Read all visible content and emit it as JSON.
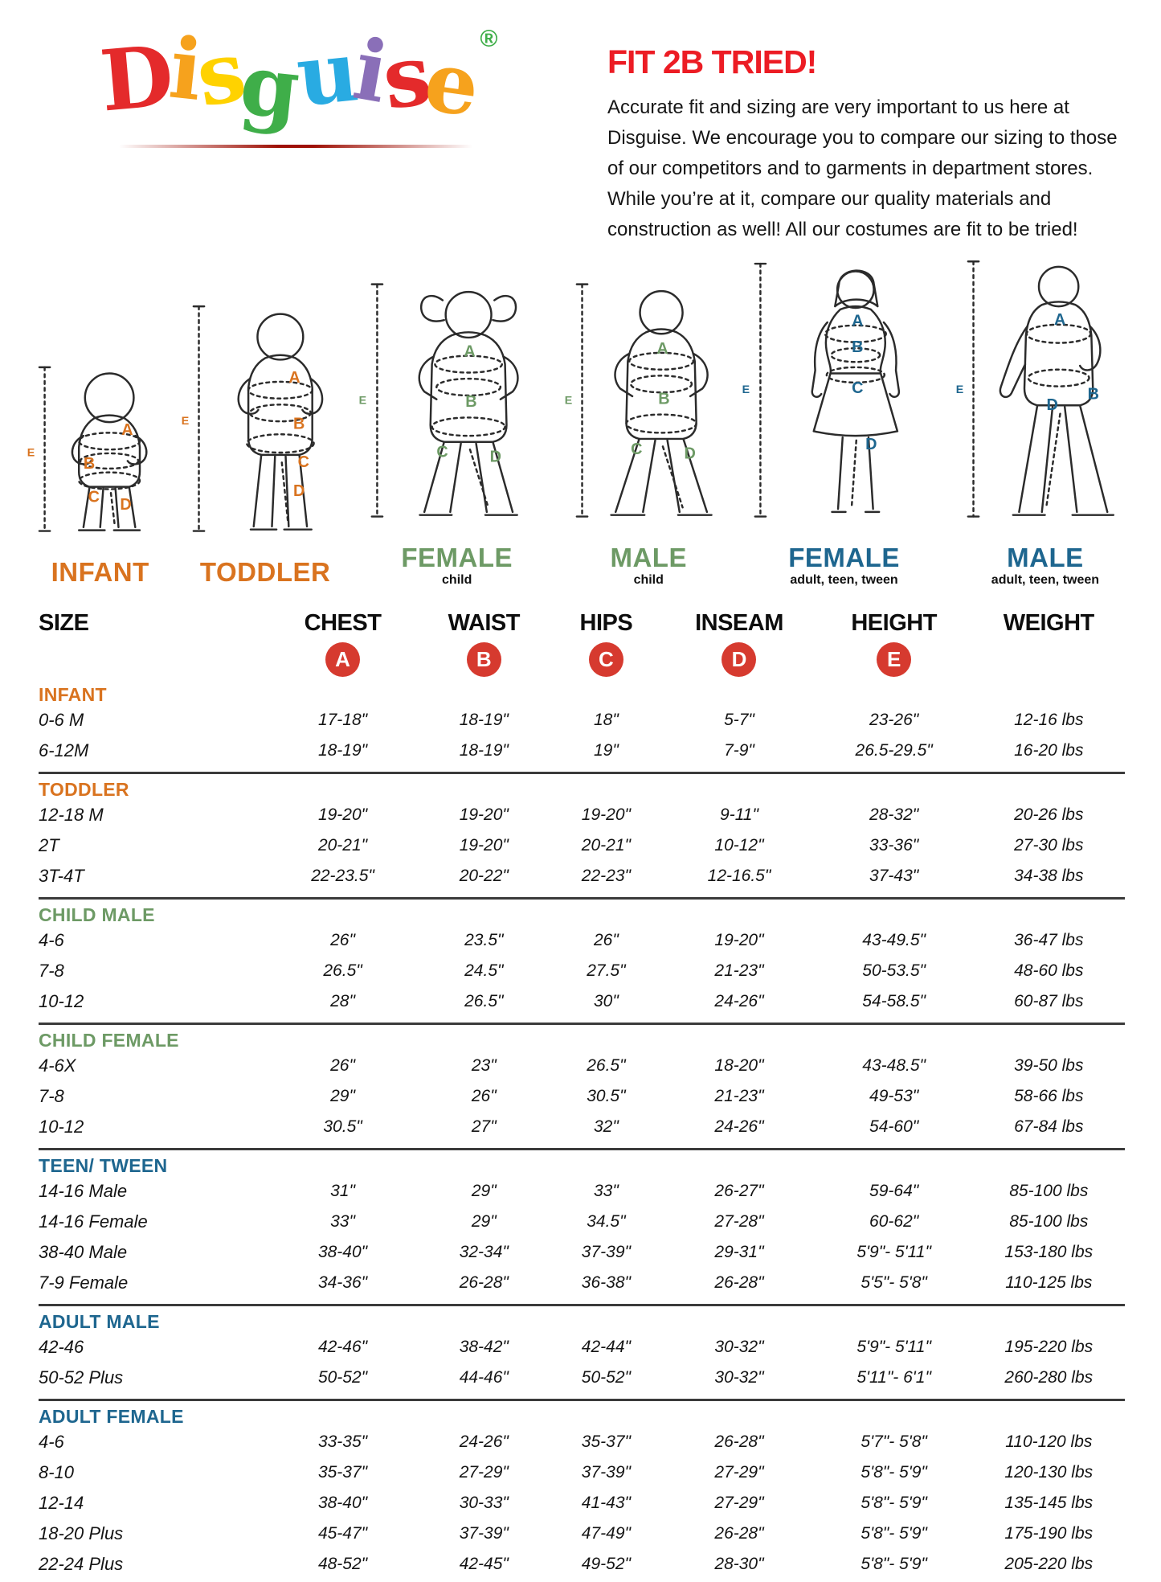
{
  "brand": {
    "logo_letters": [
      {
        "ch": "D",
        "color": "#e42a2b"
      },
      {
        "ch": "i",
        "color": "#f6a21d"
      },
      {
        "ch": "s",
        "color": "#ffd200"
      },
      {
        "ch": "g",
        "color": "#3fae49"
      },
      {
        "ch": "u",
        "color": "#29abe2"
      },
      {
        "ch": "i",
        "color": "#8a6fb8"
      },
      {
        "ch": "s",
        "color": "#e42a2b"
      },
      {
        "ch": "e",
        "color": "#f6a21d"
      }
    ],
    "registered_mark": "®",
    "registered_mark_color": "#3fae49"
  },
  "intro": {
    "title": "FIT 2B TRIED!",
    "title_color": "#ec1c24",
    "body": "Accurate fit and sizing are very important to us here at Disguise. We encourage you to compare our sizing to those of our competitors and to garments in department stores. While you’re at it, compare our quality materials and construction as well! All our costumes are fit to be tried!"
  },
  "measure_letters": {
    "a": "A",
    "b": "B",
    "c": "C",
    "d": "D",
    "e": "E"
  },
  "figures": {
    "group_colors": {
      "infant_toddler": "#d9731f",
      "child": "#6d9a65",
      "adult": "#1e668f"
    },
    "items": [
      {
        "id": "infant",
        "label": "INFANT",
        "sublabel": "",
        "color": "#d9731f",
        "letters": [
          "A",
          "B",
          "C",
          "D",
          "E"
        ]
      },
      {
        "id": "toddler",
        "label": "TODDLER",
        "sublabel": "",
        "color": "#d9731f",
        "letters": [
          "A",
          "B",
          "C",
          "D",
          "E"
        ]
      },
      {
        "id": "female-child",
        "label": "FEMALE",
        "sublabel": "child",
        "color": "#6d9a65",
        "letters": [
          "A",
          "B",
          "C",
          "D",
          "E"
        ]
      },
      {
        "id": "male-child",
        "label": "MALE",
        "sublabel": "child",
        "color": "#6d9a65",
        "letters": [
          "A",
          "B",
          "C",
          "D",
          "E"
        ]
      },
      {
        "id": "female-adult",
        "label": "FEMALE",
        "sublabel": "adult, teen, tween",
        "color": "#1e668f",
        "letters": [
          "A",
          "B",
          "C",
          "D",
          "E"
        ]
      },
      {
        "id": "male-adult",
        "label": "MALE",
        "sublabel": "adult, teen, tween",
        "color": "#1e668f",
        "letters": [
          "A",
          "B",
          "D",
          "E"
        ]
      }
    ]
  },
  "table": {
    "headers": [
      "SIZE",
      "CHEST",
      "WAIST",
      "HIPS",
      "INSEAM",
      "HEIGHT",
      "WEIGHT"
    ],
    "badge_color": "#d63a2f",
    "badges": [
      {
        "letter": "A",
        "column": "CHEST"
      },
      {
        "letter": "B",
        "column": "WAIST"
      },
      {
        "letter": "C",
        "column": "HIPS"
      },
      {
        "letter": "D",
        "column": "INSEAM"
      },
      {
        "letter": "E",
        "column": "HEIGHT"
      }
    ],
    "sections": [
      {
        "name": "INFANT",
        "color": "#d9731f",
        "rows": [
          {
            "size": "0-6 M",
            "chest": "17-18\"",
            "waist": "18-19\"",
            "hips": "18\"",
            "inseam": "5-7\"",
            "height": "23-26\"",
            "weight": "12-16 lbs"
          },
          {
            "size": "6-12M",
            "chest": "18-19\"",
            "waist": "18-19\"",
            "hips": "19\"",
            "inseam": "7-9\"",
            "height": "26.5-29.5\"",
            "weight": "16-20 lbs"
          }
        ]
      },
      {
        "name": "TODDLER",
        "color": "#d9731f",
        "rows": [
          {
            "size": "12-18 M",
            "chest": "19-20\"",
            "waist": "19-20\"",
            "hips": "19-20\"",
            "inseam": "9-11\"",
            "height": "28-32\"",
            "weight": "20-26 lbs"
          },
          {
            "size": "2T",
            "chest": "20-21\"",
            "waist": "19-20\"",
            "hips": "20-21\"",
            "inseam": "10-12\"",
            "height": "33-36\"",
            "weight": "27-30 lbs"
          },
          {
            "size": "3T-4T",
            "chest": "22-23.5\"",
            "waist": "20-22\"",
            "hips": "22-23\"",
            "inseam": "12-16.5\"",
            "height": "37-43\"",
            "weight": "34-38 lbs"
          }
        ]
      },
      {
        "name": "CHILD MALE",
        "color": "#6d9a65",
        "rows": [
          {
            "size": "4-6",
            "chest": "26\"",
            "waist": "23.5\"",
            "hips": "26\"",
            "inseam": "19-20\"",
            "height": "43-49.5\"",
            "weight": "36-47 lbs"
          },
          {
            "size": "7-8",
            "chest": "26.5\"",
            "waist": "24.5\"",
            "hips": "27.5\"",
            "inseam": "21-23\"",
            "height": "50-53.5\"",
            "weight": "48-60 lbs"
          },
          {
            "size": "10-12",
            "chest": "28\"",
            "waist": "26.5\"",
            "hips": "30\"",
            "inseam": "24-26\"",
            "height": "54-58.5\"",
            "weight": "60-87 lbs"
          }
        ]
      },
      {
        "name": "CHILD FEMALE",
        "color": "#6d9a65",
        "rows": [
          {
            "size": "4-6X",
            "chest": "26\"",
            "waist": "23\"",
            "hips": "26.5\"",
            "inseam": "18-20\"",
            "height": "43-48.5\"",
            "weight": "39-50 lbs"
          },
          {
            "size": "7-8",
            "chest": "29\"",
            "waist": "26\"",
            "hips": "30.5\"",
            "inseam": "21-23\"",
            "height": "49-53\"",
            "weight": "58-66 lbs"
          },
          {
            "size": "10-12",
            "chest": "30.5\"",
            "waist": "27\"",
            "hips": "32\"",
            "inseam": "24-26\"",
            "height": "54-60\"",
            "weight": "67-84 lbs"
          }
        ]
      },
      {
        "name": "TEEN/ TWEEN",
        "color": "#1e668f",
        "rows": [
          {
            "size": "14-16 Male",
            "chest": "31\"",
            "waist": "29\"",
            "hips": "33\"",
            "inseam": "26-27\"",
            "height": "59-64\"",
            "weight": "85-100 lbs"
          },
          {
            "size": "14-16 Female",
            "chest": "33\"",
            "waist": "29\"",
            "hips": "34.5\"",
            "inseam": "27-28\"",
            "height": "60-62\"",
            "weight": "85-100 lbs"
          },
          {
            "size": "38-40 Male",
            "chest": "38-40\"",
            "waist": "32-34\"",
            "hips": "37-39\"",
            "inseam": "29-31\"",
            "height": "5'9\"- 5'11\"",
            "weight": "153-180 lbs"
          },
          {
            "size": "7-9 Female",
            "chest": "34-36\"",
            "waist": "26-28\"",
            "hips": "36-38\"",
            "inseam": "26-28\"",
            "height": "5'5\"- 5'8\"",
            "weight": "110-125 lbs"
          }
        ]
      },
      {
        "name": "ADULT MALE",
        "color": "#1e668f",
        "rows": [
          {
            "size": "42-46",
            "chest": "42-46\"",
            "waist": "38-42\"",
            "hips": "42-44\"",
            "inseam": "30-32\"",
            "height": "5'9\"- 5'11\"",
            "weight": "195-220 lbs"
          },
          {
            "size": "50-52 Plus",
            "chest": "50-52\"",
            "waist": "44-46\"",
            "hips": "50-52\"",
            "inseam": "30-32\"",
            "height": "5'11\"- 6'1\"",
            "weight": "260-280 lbs"
          }
        ]
      },
      {
        "name": "ADULT FEMALE",
        "color": "#1e668f",
        "rows": [
          {
            "size": "4-6",
            "chest": "33-35\"",
            "waist": "24-26\"",
            "hips": "35-37\"",
            "inseam": "26-28\"",
            "height": "5'7\"- 5'8\"",
            "weight": "110-120 lbs"
          },
          {
            "size": "8-10",
            "chest": "35-37\"",
            "waist": "27-29\"",
            "hips": "37-39\"",
            "inseam": "27-29\"",
            "height": "5'8\"- 5'9\"",
            "weight": "120-130 lbs"
          },
          {
            "size": "12-14",
            "chest": "38-40\"",
            "waist": "30-33\"",
            "hips": "41-43\"",
            "inseam": "27-29\"",
            "height": "5'8\"- 5'9\"",
            "weight": "135-145 lbs"
          },
          {
            "size": "18-20 Plus",
            "chest": "45-47\"",
            "waist": "37-39\"",
            "hips": "47-49\"",
            "inseam": "26-28\"",
            "height": "5'8\"- 5'9\"",
            "weight": "175-190 lbs"
          },
          {
            "size": "22-24 Plus",
            "chest": "48-52\"",
            "waist": "42-45\"",
            "hips": "49-52\"",
            "inseam": "28-30\"",
            "height": "5'8\"- 5'9\"",
            "weight": "205-220 lbs"
          }
        ]
      }
    ]
  }
}
